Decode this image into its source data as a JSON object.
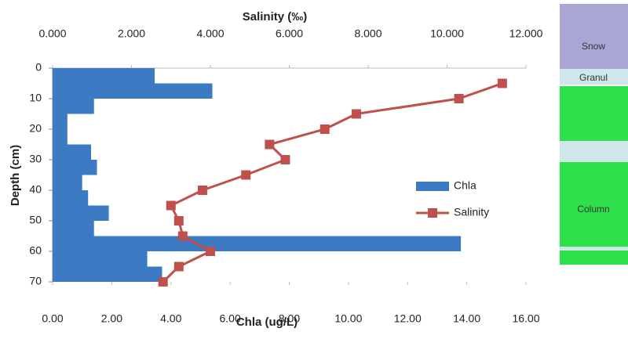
{
  "chart_data": {
    "type": "combo",
    "x_top_label": "Salinity (‰)",
    "x_bottom_label": "Chla (ug/L)",
    "y_label": "Depth (cm)",
    "ylim": [
      0,
      70
    ],
    "yticks": [
      0,
      10,
      20,
      30,
      40,
      50,
      60,
      70
    ],
    "y_inverted": true,
    "xlim": [
      0,
      16
    ],
    "xticks": [
      {
        "value": 0,
        "label": "0.00"
      },
      {
        "value": 2,
        "label": "2.00"
      },
      {
        "value": 4,
        "label": "4.00"
      },
      {
        "value": 6,
        "label": "6.00"
      },
      {
        "value": 8,
        "label": "8.00"
      },
      {
        "value": 10,
        "label": "10.00"
      },
      {
        "value": 12,
        "label": "12.00"
      },
      {
        "value": 14,
        "label": "14.00"
      },
      {
        "value": 16,
        "label": "16.00"
      }
    ],
    "x2lim": [
      0,
      12
    ],
    "x2ticks": [
      {
        "value": 0,
        "label": "0.000"
      },
      {
        "value": 2,
        "label": "2.000"
      },
      {
        "value": 4,
        "label": "4.000"
      },
      {
        "value": 6,
        "label": "6.000"
      },
      {
        "value": 8,
        "label": "8.000"
      },
      {
        "value": 10,
        "label": "10.000"
      },
      {
        "value": 12,
        "label": "12.000"
      }
    ],
    "depth_bins": [
      0,
      5,
      10,
      15,
      20,
      25,
      30,
      35,
      40,
      45,
      50,
      55,
      60,
      65,
      70
    ],
    "series": [
      {
        "name": "Chla",
        "type": "bar",
        "axis": "x",
        "color": "#3c7bc4",
        "values": [
          3.45,
          5.4,
          1.4,
          0.5,
          0.5,
          1.3,
          1.5,
          1.0,
          1.2,
          1.9,
          1.4,
          13.8,
          3.2,
          3.7
        ]
      },
      {
        "name": "Salinity",
        "type": "line",
        "axis": "x2",
        "color": "#c0504d",
        "depths": [
          5,
          10,
          15,
          20,
          25,
          30,
          35,
          40,
          45,
          50,
          55,
          60,
          65,
          70
        ],
        "values": [
          11.4,
          10.3,
          7.7,
          6.9,
          5.5,
          5.9,
          4.9,
          3.8,
          3.0,
          3.2,
          3.3,
          4.0,
          3.2,
          2.8
        ]
      }
    ]
  },
  "side_panel": {
    "layers": [
      {
        "label": "Snow"
      },
      {
        "label": "Granul"
      },
      {
        "label": "Column"
      }
    ]
  }
}
